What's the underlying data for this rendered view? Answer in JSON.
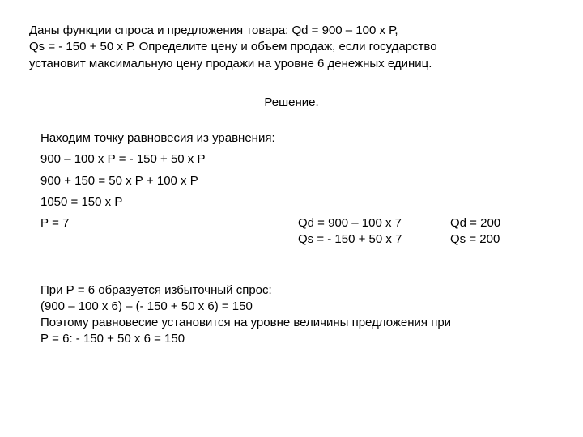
{
  "problem": {
    "line1": "Даны функции спроса и предложения товара: Qd = 900 – 100 x Р,",
    "line2": "Qs =  - 150 + 50 x Р. Определите цену и объем продаж, если государство",
    "line3": "установит максимальную цену продажи на уровне 6 денежных единиц."
  },
  "solution_title": "Решение.",
  "equilibrium": {
    "intro": "Находим точку равновесия из уравнения:",
    "eq1": "900 – 100 х Р = - 150 + 50 х Р",
    "eq2": "900 + 150 = 50 х Р + 100 х Р",
    "eq3": "1050 = 150 х Р",
    "eq4": "Р = 7",
    "qd_calc": "Qd = 900 – 100 x 7",
    "qs_calc": "Qs = - 150 + 50 x 7",
    "qd_res": "Qd = 200",
    "qs_res": " Qs = 200"
  },
  "conclusion": {
    "line1": "При Р = 6 образуется избыточный спрос:",
    "line2": "(900 – 100 х 6) – (- 150 + 50 х 6) = 150",
    "line3": "Поэтому равновесие установится на уровне величины предложения при",
    "line4": "Р = 6: - 150 + 50 х 6 = 150"
  },
  "colors": {
    "background": "#ffffff",
    "text": "#000000"
  },
  "typography": {
    "font_family": "Arial",
    "font_size_pt": 11,
    "line_height": 1.35
  }
}
